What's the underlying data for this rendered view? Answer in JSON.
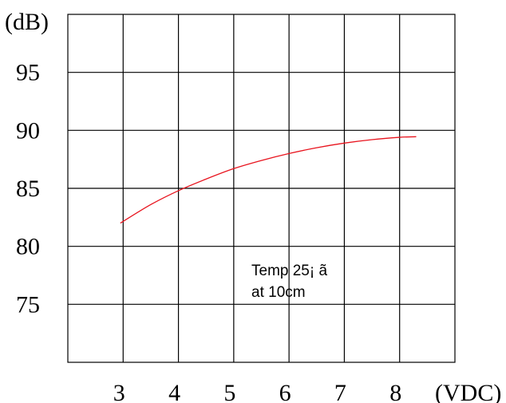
{
  "chart_data": {
    "type": "line",
    "title": "",
    "xlabel": "(VDC)",
    "ylabel": "(dB)",
    "xlim": [
      2,
      9
    ],
    "ylim": [
      70,
      100
    ],
    "grid": true,
    "x_ticks": [
      3,
      4,
      5,
      6,
      7,
      8
    ],
    "y_ticks": [
      75,
      80,
      85,
      90,
      95
    ],
    "series": [
      {
        "color": "#e8141e",
        "x": [
          2.95,
          3.5,
          4.0,
          4.5,
          5.0,
          5.5,
          6.0,
          6.5,
          7.0,
          7.5,
          8.0,
          8.3
        ],
        "y": [
          82.0,
          83.6,
          84.8,
          85.8,
          86.7,
          87.4,
          88.0,
          88.5,
          88.9,
          89.2,
          89.4,
          89.45
        ]
      }
    ],
    "annotation": {
      "lines": [
        "Temp 25¡ ã",
        "at 10cm"
      ]
    }
  }
}
